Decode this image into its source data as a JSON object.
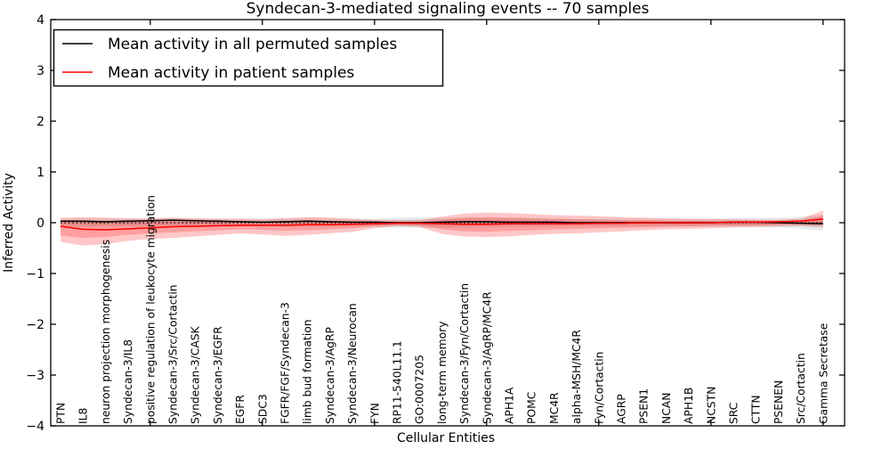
{
  "figure": {
    "title": "Syndecan-3-mediated signaling events -- 70 samples",
    "xlabel": "Cellular Entities",
    "ylabel": "Inferred Activity"
  },
  "colors": {
    "permuted_line": "#000000",
    "patient_line": "#ff0000",
    "patient_band": "#ff0000",
    "permuted_band": "#000000",
    "axis": "#000000",
    "background": "#ffffff"
  },
  "chart_data": {
    "type": "line",
    "title": "Syndecan-3-mediated signaling events -- 70 samples",
    "xlabel": "Cellular Entities",
    "ylabel": "Inferred Activity",
    "ylim": [
      -4,
      4
    ],
    "grid": false,
    "legend_position": "upper left",
    "y_ticks": [
      {
        "v": 4,
        "label": "4"
      },
      {
        "v": 3,
        "label": "3"
      },
      {
        "v": 2,
        "label": "2"
      },
      {
        "v": 1,
        "label": "1"
      },
      {
        "v": 0,
        "label": "0"
      },
      {
        "v": -1,
        "label": "−1"
      },
      {
        "v": -2,
        "label": "−2"
      },
      {
        "v": -3,
        "label": "−3"
      },
      {
        "v": -4,
        "label": "−4"
      }
    ],
    "x_tick_indices": [
      4,
      9,
      14,
      19,
      24,
      29,
      34
    ],
    "categories": [
      "PTN",
      "IL8",
      "neuron projection morphogenesis",
      "Syndecan-3/IL8",
      "positive regulation of leukocyte migration",
      "Syndecan-3/Src/Cortactin",
      "Syndecan-3/CASK",
      "Syndecan-3/EGFR",
      "EGFR",
      "SDC3",
      "FGFR/FGF/Syndecan-3",
      "limb bud formation",
      "Syndecan-3/AgRP",
      "Syndecan-3/Neurocan",
      "FYN",
      "RP11-540L11.1",
      "GO:0007205",
      "long-term memory",
      "Syndecan-3/Fyn/Cortactin",
      "Syndecan-3/AgRP/MC4R",
      "APH1A",
      "POMC",
      "MC4R",
      "alpha-MSH/MC4R",
      "Fyn/Cortactin",
      "AGRP",
      "PSEN1",
      "NCAN",
      "APH1B",
      "NCSTN",
      "SRC",
      "CTTN",
      "PSENEN",
      "Src/Cortactin",
      "Gamma Secretase"
    ],
    "series": [
      {
        "name": "Mean activity in all permuted samples",
        "color": "#000000",
        "values": [
          0.03,
          0.03,
          0.02,
          0.03,
          0.04,
          0.05,
          0.04,
          0.03,
          0.02,
          0.01,
          0.02,
          0.03,
          0.02,
          0.01,
          0.01,
          0.0,
          0.0,
          0.01,
          0.02,
          0.02,
          0.01,
          0.01,
          0.01,
          0.0,
          0.0,
          0.0,
          0.0,
          0.0,
          0.0,
          0.0,
          0.01,
          0.01,
          0.0,
          -0.01,
          -0.02
        ]
      },
      {
        "name": "Mean activity in patient samples",
        "color": "#ff0000",
        "values": [
          -0.07,
          -0.13,
          -0.14,
          -0.12,
          -0.1,
          -0.08,
          -0.07,
          -0.06,
          -0.05,
          -0.05,
          -0.05,
          -0.04,
          -0.04,
          -0.03,
          -0.02,
          -0.01,
          -0.01,
          -0.02,
          -0.03,
          -0.03,
          -0.02,
          -0.02,
          -0.02,
          -0.02,
          -0.01,
          -0.01,
          0.0,
          0.0,
          0.0,
          0.0,
          0.01,
          0.01,
          0.02,
          0.03,
          0.07
        ]
      }
    ],
    "bands": [
      {
        "name": "permuted-range-outer",
        "color": "#000000",
        "opacity": 0.08,
        "upper": [
          0.08,
          0.09,
          0.09,
          0.08,
          0.08,
          0.09,
          0.08,
          0.08,
          0.08,
          0.08,
          0.09,
          0.1,
          0.09,
          0.08,
          0.08,
          0.1,
          0.11,
          0.1,
          0.1,
          0.1,
          0.09,
          0.08,
          0.08,
          0.08,
          0.08,
          0.08,
          0.08,
          0.08,
          0.08,
          0.09,
          0.09,
          0.1,
          0.1,
          0.12,
          0.16
        ],
        "lower": [
          -0.07,
          -0.08,
          -0.08,
          -0.08,
          -0.08,
          -0.08,
          -0.08,
          -0.07,
          -0.07,
          -0.07,
          -0.08,
          -0.09,
          -0.08,
          -0.08,
          -0.08,
          -0.1,
          -0.11,
          -0.1,
          -0.1,
          -0.09,
          -0.08,
          -0.08,
          -0.08,
          -0.07,
          -0.07,
          -0.07,
          -0.07,
          -0.07,
          -0.08,
          -0.08,
          -0.09,
          -0.1,
          -0.1,
          -0.12,
          -0.16
        ]
      },
      {
        "name": "permuted-range-inner",
        "color": "#000000",
        "opacity": 0.07,
        "upper": [
          0.05,
          0.05,
          0.05,
          0.05,
          0.05,
          0.05,
          0.05,
          0.05,
          0.05,
          0.05,
          0.05,
          0.06,
          0.05,
          0.05,
          0.05,
          0.06,
          0.07,
          0.06,
          0.06,
          0.06,
          0.05,
          0.05,
          0.05,
          0.04,
          0.04,
          0.04,
          0.04,
          0.04,
          0.05,
          0.05,
          0.05,
          0.06,
          0.06,
          0.07,
          0.1
        ],
        "lower": [
          -0.04,
          -0.05,
          -0.05,
          -0.05,
          -0.05,
          -0.05,
          -0.05,
          -0.04,
          -0.04,
          -0.04,
          -0.05,
          -0.05,
          -0.05,
          -0.05,
          -0.05,
          -0.06,
          -0.07,
          -0.06,
          -0.06,
          -0.05,
          -0.05,
          -0.05,
          -0.05,
          -0.04,
          -0.04,
          -0.04,
          -0.04,
          -0.04,
          -0.05,
          -0.05,
          -0.05,
          -0.06,
          -0.06,
          -0.07,
          -0.1
        ]
      },
      {
        "name": "patient-range-outer",
        "color": "#ff0000",
        "opacity": 0.22,
        "upper": [
          0.1,
          0.11,
          0.1,
          0.09,
          0.09,
          0.1,
          0.09,
          0.08,
          0.08,
          0.07,
          0.09,
          0.11,
          0.1,
          0.08,
          0.06,
          0.05,
          0.05,
          0.12,
          0.18,
          0.2,
          0.19,
          0.17,
          0.15,
          0.14,
          0.13,
          0.11,
          0.1,
          0.09,
          0.08,
          0.07,
          0.07,
          0.06,
          0.06,
          0.08,
          0.24
        ],
        "lower": [
          -0.38,
          -0.45,
          -0.42,
          -0.36,
          -0.32,
          -0.3,
          -0.27,
          -0.24,
          -0.21,
          -0.23,
          -0.26,
          -0.24,
          -0.21,
          -0.18,
          -0.11,
          -0.07,
          -0.08,
          -0.22,
          -0.27,
          -0.28,
          -0.27,
          -0.24,
          -0.22,
          -0.21,
          -0.19,
          -0.17,
          -0.15,
          -0.13,
          -0.12,
          -0.11,
          -0.09,
          -0.08,
          -0.07,
          -0.06,
          -0.08
        ]
      },
      {
        "name": "patient-range-inner",
        "color": "#ff0000",
        "opacity": 0.2,
        "upper": [
          0.04,
          0.04,
          0.03,
          0.03,
          0.04,
          0.05,
          0.04,
          0.03,
          0.03,
          0.02,
          0.03,
          0.05,
          0.04,
          0.03,
          0.02,
          0.02,
          0.02,
          0.06,
          0.1,
          0.11,
          0.1,
          0.09,
          0.08,
          0.07,
          0.06,
          0.05,
          0.05,
          0.04,
          0.04,
          0.03,
          0.03,
          0.03,
          0.03,
          0.04,
          0.14
        ],
        "lower": [
          -0.25,
          -0.3,
          -0.28,
          -0.24,
          -0.21,
          -0.19,
          -0.17,
          -0.15,
          -0.13,
          -0.14,
          -0.16,
          -0.15,
          -0.13,
          -0.11,
          -0.07,
          -0.04,
          -0.05,
          -0.13,
          -0.17,
          -0.18,
          -0.16,
          -0.15,
          -0.13,
          -0.12,
          -0.11,
          -0.1,
          -0.09,
          -0.08,
          -0.07,
          -0.06,
          -0.05,
          -0.05,
          -0.04,
          -0.03,
          -0.04
        ]
      }
    ],
    "zero_line": {
      "value": 0,
      "style": "dotted",
      "color": "#000000"
    }
  }
}
